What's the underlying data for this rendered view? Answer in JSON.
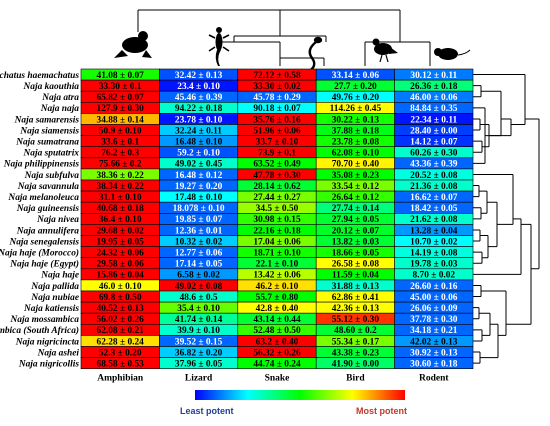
{
  "chart_data": {
    "type": "heatmap",
    "columns": [
      "Amphibian",
      "Lizard",
      "Snake",
      "Bird",
      "Rodent"
    ],
    "column_icons": [
      "frog-icon",
      "lizard-icon",
      "snake-icon",
      "bird-icon",
      "rodent-icon"
    ],
    "rows": [
      {
        "species": "Hemachatus haemachatus",
        "cells": [
          {
            "label": "41.08 ± 0.07",
            "level": 0.52
          },
          {
            "label": "32.42 ± 0.13",
            "level": 0.08
          },
          {
            "label": "72.12 ± 0.58",
            "level": 1.0
          },
          {
            "label": "33.14 ± 0.06",
            "level": 0.08
          },
          {
            "label": "30.12 ± 0.11",
            "level": 0.12
          }
        ]
      },
      {
        "species": "Naja kaouthia",
        "cells": [
          {
            "label": "33.30 ± 0.1",
            "level": 1.0
          },
          {
            "label": "23.4 ± 0.10",
            "level": 0.02
          },
          {
            "label": "33.30 ± 0.02",
            "level": 1.0
          },
          {
            "label": "27.7 ± 0.20",
            "level": 0.45
          },
          {
            "label": "26.36 ± 0.18",
            "level": 0.38
          }
        ]
      },
      {
        "species": "Naja atra",
        "cells": [
          {
            "label": "65.82 ± 0.07",
            "level": 1.0
          },
          {
            "label": "45.46 ± 0.39",
            "level": 0.1
          },
          {
            "label": "45.78 ± 0.29",
            "level": 0.1
          },
          {
            "label": "49.76 ± 0.20",
            "level": 0.25
          },
          {
            "label": "46.00 ± 0.06",
            "level": 0.12
          }
        ]
      },
      {
        "species": "Naja naja",
        "cells": [
          {
            "label": "127.9 ± 0.30",
            "level": 1.0
          },
          {
            "label": "94.22 ± 0.18",
            "level": 0.3
          },
          {
            "label": "90.18 ± 0.07",
            "level": 0.25
          },
          {
            "label": "114.26 ± 0.45",
            "level": 0.75
          },
          {
            "label": "84.84 ± 0.35",
            "level": 0.1
          }
        ]
      },
      {
        "species": "Naja samarensis",
        "cells": [
          {
            "label": "34.88 ± 0.14",
            "level": 0.82
          },
          {
            "label": "23.78 ± 0.10",
            "level": 0.02
          },
          {
            "label": "35.76 ± 0.16",
            "level": 1.0
          },
          {
            "label": "30.22 ± 0.13",
            "level": 0.52
          },
          {
            "label": "22.34 ± 0.11",
            "level": 0.02
          }
        ]
      },
      {
        "species": "Naja siamensis",
        "cells": [
          {
            "label": "50.9 ± 0.10",
            "level": 1.0
          },
          {
            "label": "32.24 ± 0.11",
            "level": 0.2
          },
          {
            "label": "51.96 ± 0.06",
            "level": 1.0
          },
          {
            "label": "37.88 ± 0.18",
            "level": 0.48
          },
          {
            "label": "28.40 ± 0.00",
            "level": 0.06
          }
        ]
      },
      {
        "species": "Naja sumatrana",
        "cells": [
          {
            "label": "33.6 ± 0.1",
            "level": 1.0
          },
          {
            "label": "16.48 ± 0.10",
            "level": 0.15
          },
          {
            "label": "33.7 ± 0.10",
            "level": 1.0
          },
          {
            "label": "23.78 ± 0.08",
            "level": 0.52
          },
          {
            "label": "14.12 ± 0.07",
            "level": 0.05
          }
        ]
      },
      {
        "species": "Naja sputatrix",
        "cells": [
          {
            "label": "76.2 ± 0.3",
            "level": 1.0
          },
          {
            "label": "59.2 ± 0.10",
            "level": 0.08
          },
          {
            "label": "73.9 ± 0.1",
            "level": 1.0
          },
          {
            "label": "62.08 ± 0.10",
            "level": 0.5
          },
          {
            "label": "60.26 ± 0.30",
            "level": 0.3
          }
        ]
      },
      {
        "species": "Naja philippinensis",
        "cells": [
          {
            "label": "75.66 ± 0.2",
            "level": 1.0
          },
          {
            "label": "49.02 ± 0.45",
            "level": 0.3
          },
          {
            "label": "63.52 ± 0.49",
            "level": 0.5
          },
          {
            "label": "70.70 ± 0.40",
            "level": 0.76
          },
          {
            "label": "43.36 ± 0.39",
            "level": 0.1
          }
        ]
      },
      {
        "species": "Naja subfulva",
        "cells": [
          {
            "label": "38.36 ± 0.22",
            "level": 0.62
          },
          {
            "label": "16.48 ± 0.12",
            "level": 0.1
          },
          {
            "label": "47.78 ± 0.30",
            "level": 1.0
          },
          {
            "label": "35.08 ± 0.23",
            "level": 0.5
          },
          {
            "label": "20.52 ± 0.08",
            "level": 0.28
          }
        ]
      },
      {
        "species": "Naja savannula",
        "cells": [
          {
            "label": "38.34 ± 0.22",
            "level": 1.0
          },
          {
            "label": "19.27 ± 0.20",
            "level": 0.1
          },
          {
            "label": "28.14 ± 0.62",
            "level": 0.45
          },
          {
            "label": "33.54 ± 0.12",
            "level": 0.62
          },
          {
            "label": "21.36 ± 0.08",
            "level": 0.3
          }
        ]
      },
      {
        "species": "Naja melanoleuca",
        "cells": [
          {
            "label": "31.1 ± 0.10",
            "level": 1.0
          },
          {
            "label": "17.48 ± 0.10",
            "level": 0.25
          },
          {
            "label": "27.44 ± 0.27",
            "level": 0.62
          },
          {
            "label": "26.64 ± 0.12",
            "level": 0.55
          },
          {
            "label": "16.62 ± 0.07",
            "level": 0.1
          }
        ]
      },
      {
        "species": "Naja guineensis",
        "cells": [
          {
            "label": "40.68 ± 0.18",
            "level": 1.0
          },
          {
            "label": "18.078 ± 0.10",
            "level": 0.1
          },
          {
            "label": "34.5 ± 0.50",
            "level": 0.65
          },
          {
            "label": "27.74 ± 0.14",
            "level": 0.38
          },
          {
            "label": "18.42 ± 0.05",
            "level": 0.1
          }
        ]
      },
      {
        "species": "Naja nivea",
        "cells": [
          {
            "label": "36.4 ± 0.10",
            "level": 1.0
          },
          {
            "label": "19.85 ± 0.07",
            "level": 0.1
          },
          {
            "label": "30.98 ± 0.15",
            "level": 0.55
          },
          {
            "label": "27.94 ± 0.05",
            "level": 0.45
          },
          {
            "label": "21.62 ± 0.08",
            "level": 0.3
          }
        ]
      },
      {
        "species": "Naja annulifera",
        "cells": [
          {
            "label": "29.68 ± 0.02",
            "level": 1.0
          },
          {
            "label": "12.36 ± 0.01",
            "level": 0.1
          },
          {
            "label": "22.16 ± 0.18",
            "level": 0.5
          },
          {
            "label": "20.12 ± 0.07",
            "level": 0.46
          },
          {
            "label": "13.28 ± 0.04",
            "level": 0.15
          }
        ]
      },
      {
        "species": "Naja senegalensis",
        "cells": [
          {
            "label": "19.95 ± 0.05",
            "level": 1.0
          },
          {
            "label": "10.32 ± 0.02",
            "level": 0.2
          },
          {
            "label": "17.04 ± 0.06",
            "level": 0.62
          },
          {
            "label": "13.82 ± 0.03",
            "level": 0.45
          },
          {
            "label": "10.70 ± 0.02",
            "level": 0.25
          }
        ]
      },
      {
        "species": "Naja haje (Morocco)",
        "cells": [
          {
            "label": "24.32 ± 0.06",
            "level": 1.0
          },
          {
            "label": "12.77 ± 0.06",
            "level": 0.1
          },
          {
            "label": "18.71 ± 0.10",
            "level": 0.52
          },
          {
            "label": "18.66 ± 0.05",
            "level": 0.52
          },
          {
            "label": "14.19 ± 0.08",
            "level": 0.28
          }
        ]
      },
      {
        "species": "Naja haje (Egypt)",
        "cells": [
          {
            "label": "29.58 ± 0.06",
            "level": 1.0
          },
          {
            "label": "17.14 ± 0.05",
            "level": 0.1
          },
          {
            "label": "22.1 ± 0.10",
            "level": 0.45
          },
          {
            "label": "26.58 ± 0.08",
            "level": 0.75
          },
          {
            "label": "19.78 ± 0.03",
            "level": 0.3
          }
        ]
      },
      {
        "species": "Naja haje",
        "cells": [
          {
            "label": "15.86 ± 0.04",
            "level": 1.0
          },
          {
            "label": "6.58 ± 0.02",
            "level": 0.15
          },
          {
            "label": "13.42 ± 0.06",
            "level": 0.68
          },
          {
            "label": "11.59 ± 0.04",
            "level": 0.5
          },
          {
            "label": "8.70 ± 0.02",
            "level": 0.3
          }
        ]
      },
      {
        "species": "Naja pallida",
        "cells": [
          {
            "label": "46.0 ± 0.10",
            "level": 0.75
          },
          {
            "label": "49.02 ± 0.08",
            "level": 1.0
          },
          {
            "label": "46.2 ± 0.10",
            "level": 0.78
          },
          {
            "label": "31.88 ± 0.13",
            "level": 0.3
          },
          {
            "label": "26.60 ± 0.16",
            "level": 0.1
          }
        ]
      },
      {
        "species": "Naja nubiae",
        "cells": [
          {
            "label": "69.8 ± 0.50",
            "level": 1.0
          },
          {
            "label": "48.6 ± 0.5",
            "level": 0.3
          },
          {
            "label": "55.7 ± 0.80",
            "level": 0.5
          },
          {
            "label": "62.86 ± 0.41",
            "level": 0.75
          },
          {
            "label": "45.00 ± 0.06",
            "level": 0.1
          }
        ]
      },
      {
        "species": "Naja katiensis",
        "cells": [
          {
            "label": "40.52 ± 0.13",
            "level": 1.0
          },
          {
            "label": "35.4 ± 0.10",
            "level": 0.6
          },
          {
            "label": "42.8 ± 0.40",
            "level": 0.75
          },
          {
            "label": "42.36 ± 0.13",
            "level": 0.75
          },
          {
            "label": "26.06 ± 0.09",
            "level": 0.1
          }
        ]
      },
      {
        "species": "Naja mossambica",
        "cells": [
          {
            "label": "56.02 ± 0.26",
            "level": 1.0
          },
          {
            "label": "41.74 ± 0.14",
            "level": 0.35
          },
          {
            "label": "43.14 ± 0.44",
            "level": 0.45
          },
          {
            "label": "55.12 ± 0.30",
            "level": 0.95
          },
          {
            "label": "37.78 ± 0.30",
            "level": 0.1
          }
        ]
      },
      {
        "species": "Naja mossambica (South Africa)",
        "cells": [
          {
            "label": "62.08 ± 0.21",
            "level": 1.0
          },
          {
            "label": "39.9 ± 0.10",
            "level": 0.3
          },
          {
            "label": "52.48 ± 0.50",
            "level": 0.55
          },
          {
            "label": "48.60 ± 0.2",
            "level": 0.45
          },
          {
            "label": "34.18 ± 0.21",
            "level": 0.1
          }
        ]
      },
      {
        "species": "Naja nigricincta",
        "cells": [
          {
            "label": "62.28 ± 0.24",
            "level": 0.78
          },
          {
            "label": "39.52 ± 0.15",
            "level": 0.1
          },
          {
            "label": "63.2 ± 0.40",
            "level": 1.0
          },
          {
            "label": "55.34 ± 0.17",
            "level": 0.62
          },
          {
            "label": "42.02 ± 0.13",
            "level": 0.15
          }
        ]
      },
      {
        "species": "Naja ashei",
        "cells": [
          {
            "label": "52.3 ± 0.20",
            "level": 1.0
          },
          {
            "label": "36.82 ± 0.20",
            "level": 0.2
          },
          {
            "label": "56.32 ± 0.26",
            "level": 1.0
          },
          {
            "label": "43.38 ± 0.23",
            "level": 0.45
          },
          {
            "label": "30.92 ± 0.13",
            "level": 0.1
          }
        ]
      },
      {
        "species": "Naja nigricollis",
        "cells": [
          {
            "label": "68.58 ± 0.53",
            "level": 1.0
          },
          {
            "label": "37.96 ± 0.05",
            "level": 0.3
          },
          {
            "label": "44.74 ± 0.24",
            "level": 0.5
          },
          {
            "label": "41.90 ± 0.00",
            "level": 0.4
          },
          {
            "label": "30.60 ± 0.18",
            "level": 0.1
          }
        ]
      }
    ],
    "legend": {
      "min_label": "Least potent",
      "max_label": "Most potent"
    },
    "colors": {
      "least": "#0000ff",
      "low": "#00ffff",
      "mid": "#00ff00",
      "high": "#ffff00",
      "most": "#ff0000"
    }
  }
}
